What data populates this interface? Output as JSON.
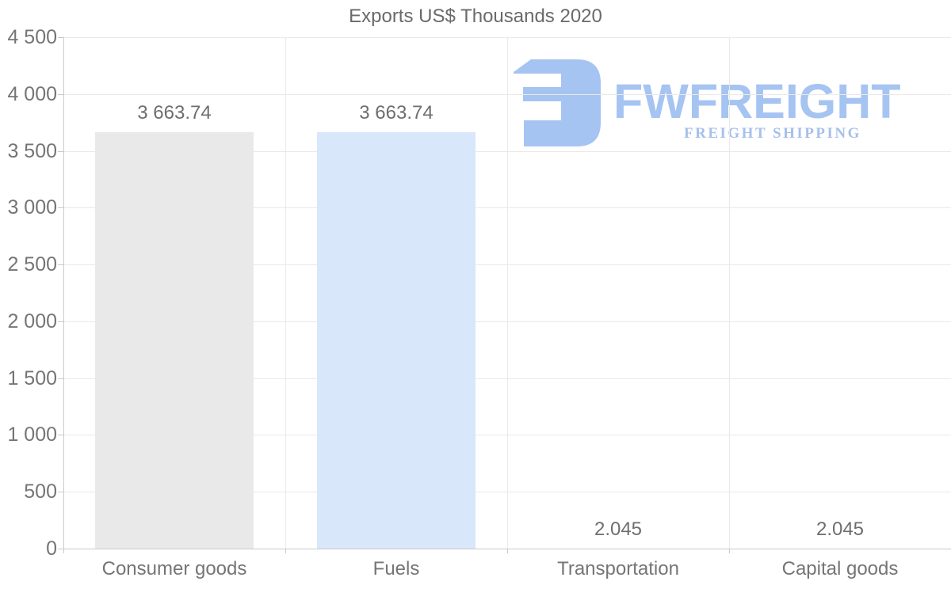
{
  "title": "Exports US$ Thousands 2020",
  "logo": {
    "wordmark": "FWFREIGHT",
    "tagline": "FREIGHT SHIPPING",
    "color_primary": "#a6c4f1",
    "color_tagline": "#a7c0ea"
  },
  "chart_data": {
    "type": "bar",
    "title": "Exports US$ Thousands 2020",
    "categories": [
      "Consumer goods",
      "Fuels",
      "Transportation",
      "Capital goods"
    ],
    "values": [
      3663.74,
      3663.74,
      2.045,
      2.045
    ],
    "value_labels": [
      "3 663.74",
      "3 663.74",
      "2.045",
      "2.045"
    ],
    "bar_colors": [
      "#e9e9e9",
      "#d8e7f9",
      "#e9e9e9",
      "#d8e7f9"
    ],
    "xlabel": "",
    "ylabel": "",
    "ylim": [
      0,
      4500
    ],
    "ytick_step": 500,
    "ytick_labels": [
      "0",
      "500",
      "1 000",
      "1 500",
      "2 000",
      "2 500",
      "3 000",
      "3 500",
      "4 000",
      "4 500"
    ],
    "grid": true,
    "legend": "none"
  },
  "colors": {
    "title_text": "#6a6a6a",
    "axis_text": "#757575",
    "value_text": "#6e6e6e",
    "gridline": "#e9e9e9",
    "axis_line": "#c9c9c9"
  }
}
